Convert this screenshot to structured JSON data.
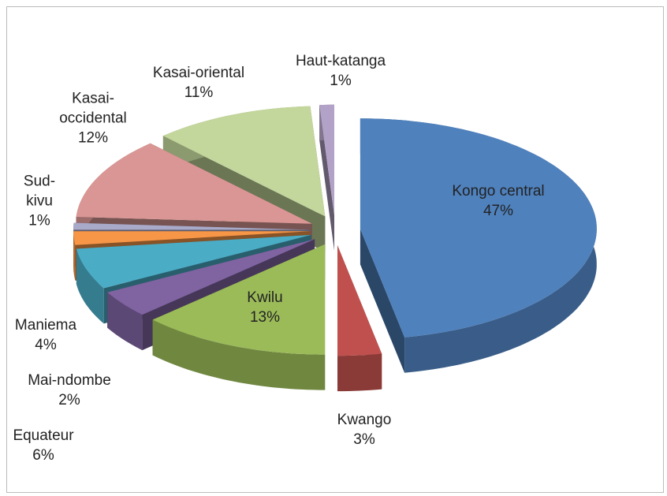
{
  "chart_data": {
    "type": "pie",
    "categories": [
      "Kongo central",
      "Kwango",
      "Kwilu",
      "Maniema",
      "Equateur",
      "Mai-ndombe",
      "Sud-kivu",
      "Kasai-occidental",
      "Kasai-oriental",
      "Haut-katanga"
    ],
    "values": [
      47,
      3,
      13,
      4,
      6,
      2,
      1,
      12,
      11,
      1
    ],
    "value_labels": [
      "47%",
      "3%",
      "13%",
      "4%",
      "6%",
      "2%",
      "1%",
      "12%",
      "11%",
      "1%"
    ],
    "colors": [
      "#4f81bd",
      "#c0504d",
      "#9bbb59",
      "#8064a2",
      "#4bacc6",
      "#f79646",
      "#a9a9c9",
      "#d99694",
      "#c3d69b",
      "#b3a2c7"
    ],
    "exploded": true,
    "three_d": true
  }
}
